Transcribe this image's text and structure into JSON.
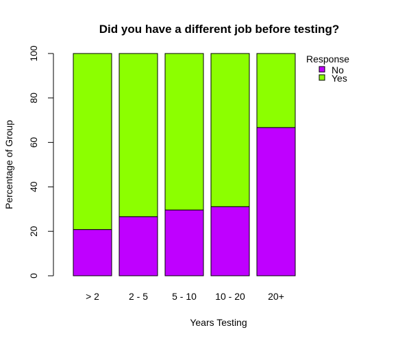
{
  "chart_data": {
    "type": "bar",
    "stacked": true,
    "title": "Did you have a different job before testing?",
    "xlabel": "Years Testing",
    "ylabel": "Percentage of Group",
    "ylim": [
      0,
      100
    ],
    "yticks": [
      0,
      20,
      40,
      60,
      80,
      100
    ],
    "categories": [
      "> 2",
      "2 - 5",
      "5 - 10",
      "10 - 20",
      "20+"
    ],
    "series": [
      {
        "name": "No",
        "color": "#bf00ff",
        "values": [
          20.8,
          26.6,
          29.6,
          31.1,
          66.7
        ]
      },
      {
        "name": "Yes",
        "color": "#8cff00",
        "values": [
          79.2,
          73.4,
          70.4,
          68.9,
          33.3
        ]
      }
    ],
    "legend": {
      "title": "Response",
      "placement": "top-right"
    },
    "grid": false
  }
}
